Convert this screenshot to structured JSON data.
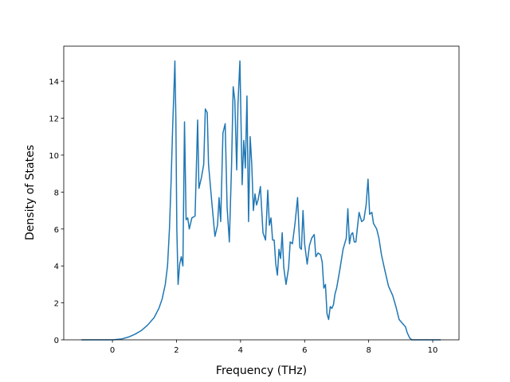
{
  "chart_data": {
    "type": "line",
    "x_label": "Frequency (THz)",
    "y_label": "Density of States",
    "xlim": [
      -1.52,
      10.82
    ],
    "ylim": [
      0,
      15.9
    ],
    "xticks": [
      0,
      2,
      4,
      6,
      8,
      10
    ],
    "yticks": [
      0,
      2,
      4,
      6,
      8,
      10,
      12,
      14
    ],
    "series": [
      {
        "color": "#1f77b4",
        "x": [
          -0.97,
          0,
          0.3,
          0.5,
          0.7,
          0.9,
          1.1,
          1.3,
          1.45,
          1.55,
          1.65,
          1.72,
          1.78,
          1.83,
          1.88,
          1.92,
          1.95,
          1.98,
          2.01,
          2.05,
          2.1,
          2.15,
          2.2,
          2.25,
          2.3,
          2.35,
          2.4,
          2.48,
          2.58,
          2.66,
          2.7,
          2.78,
          2.85,
          2.9,
          2.96,
          3.0,
          3.1,
          3.2,
          3.28,
          3.33,
          3.38,
          3.45,
          3.52,
          3.58,
          3.65,
          3.72,
          3.77,
          3.82,
          3.88,
          3.92,
          3.98,
          4.05,
          4.1,
          4.15,
          4.2,
          4.25,
          4.3,
          4.35,
          4.4,
          4.45,
          4.5,
          4.55,
          4.62,
          4.7,
          4.78,
          4.85,
          4.9,
          4.95,
          5.0,
          5.05,
          5.1,
          5.15,
          5.2,
          5.25,
          5.3,
          5.35,
          5.42,
          5.5,
          5.55,
          5.62,
          5.7,
          5.78,
          5.85,
          5.9,
          5.95,
          6.0,
          6.08,
          6.15,
          6.22,
          6.3,
          6.35,
          6.42,
          6.5,
          6.55,
          6.6,
          6.65,
          6.7,
          6.75,
          6.8,
          6.85,
          6.9,
          6.95,
          7.0,
          7.1,
          7.2,
          7.3,
          7.35,
          7.4,
          7.45,
          7.5,
          7.55,
          7.6,
          7.7,
          7.78,
          7.85,
          7.92,
          7.98,
          8.03,
          8.1,
          8.15,
          8.25,
          8.32,
          8.4,
          8.5,
          8.62,
          8.75,
          8.85,
          8.95,
          9.05,
          9.15,
          9.2,
          9.28,
          9.35,
          10.25
        ],
        "values": [
          0,
          0,
          0.05,
          0.15,
          0.3,
          0.5,
          0.8,
          1.2,
          1.7,
          2.2,
          3.0,
          4.0,
          6.0,
          8.5,
          11.5,
          13.5,
          15.1,
          12,
          6,
          3.0,
          4.1,
          4.5,
          4.0,
          11.8,
          6.5,
          6.6,
          6.0,
          6.6,
          6.7,
          11.9,
          8.2,
          8.8,
          9.5,
          12.5,
          12.3,
          9.5,
          7.5,
          5.6,
          6.2,
          7.7,
          6.4,
          11.2,
          11.7,
          7.2,
          5.3,
          9.5,
          13.7,
          13,
          9.2,
          12.8,
          15.1,
          8.4,
          10.8,
          9.3,
          13.2,
          6.4,
          11,
          9.5,
          7.0,
          7.9,
          7.3,
          7.6,
          8.3,
          5.8,
          5.4,
          8.1,
          6.2,
          6.6,
          5.4,
          5.4,
          4.1,
          3.5,
          4.9,
          4.4,
          5.8,
          3.9,
          3.0,
          3.9,
          5.3,
          5.2,
          6.3,
          7.7,
          5.0,
          4.9,
          7.0,
          5.2,
          4.1,
          5.1,
          5.5,
          5.7,
          4.5,
          4.7,
          4.6,
          4.2,
          2.8,
          3.0,
          1.4,
          1.1,
          1.8,
          1.7,
          1.9,
          2.5,
          2.8,
          3.8,
          4.9,
          5.5,
          7.1,
          5.2,
          5.7,
          5.8,
          5.3,
          5.3,
          6.9,
          6.4,
          6.5,
          7.3,
          8.7,
          6.8,
          6.9,
          6.3,
          6.0,
          5.5,
          4.6,
          3.8,
          2.9,
          2.4,
          1.8,
          1.1,
          0.9,
          0.7,
          0.4,
          0.1,
          0,
          0
        ]
      }
    ]
  }
}
